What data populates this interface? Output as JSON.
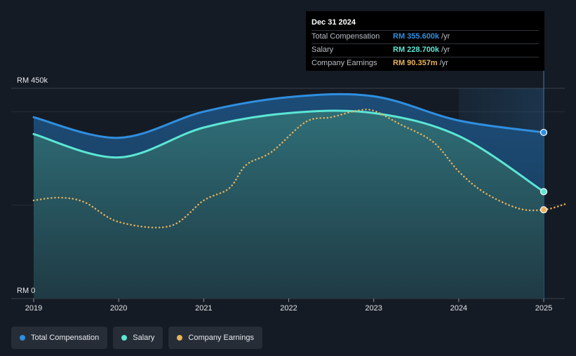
{
  "chart_data": {
    "type": "area",
    "y_axis": {
      "top_label": "RM 450k",
      "bottom_label": "RM 0",
      "ylim": [
        0,
        450000
      ]
    },
    "x_ticks": [
      "2019",
      "2020",
      "2021",
      "2022",
      "2023",
      "2024",
      "2025"
    ],
    "xlim": [
      2019,
      2025.25
    ],
    "forecast_start": 2024,
    "series": [
      {
        "name": "Total Compensation",
        "color": "#2f8fe0",
        "style": "area",
        "points": [
          [
            2019.0,
            388000
          ],
          [
            2020.0,
            344000
          ],
          [
            2021.0,
            400000
          ],
          [
            2022.0,
            431000
          ],
          [
            2023.0,
            433000
          ],
          [
            2024.0,
            381000
          ],
          [
            2025.0,
            355600
          ]
        ]
      },
      {
        "name": "Salary",
        "color": "#5ce6d4",
        "style": "area",
        "points": [
          [
            2019.0,
            352000
          ],
          [
            2020.0,
            302000
          ],
          [
            2021.0,
            366000
          ],
          [
            2022.0,
            397000
          ],
          [
            2023.0,
            397000
          ],
          [
            2024.0,
            348000
          ],
          [
            2025.0,
            228700
          ]
        ]
      },
      {
        "name": "Company Earnings",
        "color": "#e8b25c",
        "style": "dotted-line",
        "points": [
          [
            2019.0,
            210000
          ],
          [
            2019.3,
            216000
          ],
          [
            2019.6,
            206000
          ],
          [
            2020.0,
            164000
          ],
          [
            2020.6,
            155000
          ],
          [
            2021.0,
            210000
          ],
          [
            2021.3,
            236000
          ],
          [
            2021.5,
            286000
          ],
          [
            2021.8,
            314000
          ],
          [
            2022.2,
            378000
          ],
          [
            2022.5,
            388000
          ],
          [
            2022.8,
            402000
          ],
          [
            2023.0,
            402000
          ],
          [
            2023.3,
            374000
          ],
          [
            2023.7,
            335000
          ],
          [
            2024.0,
            272000
          ],
          [
            2024.3,
            227000
          ],
          [
            2024.7,
            193000
          ],
          [
            2025.0,
            190000
          ],
          [
            2025.25,
            202000
          ]
        ]
      }
    ],
    "legend_position": "bottom-left"
  },
  "tooltip": {
    "date": "Dec 31 2024",
    "rows": [
      {
        "name": "Total Compensation",
        "value": "RM 355.600k",
        "unit": "/yr",
        "color": "#2f8fe0"
      },
      {
        "name": "Salary",
        "value": "RM 228.700k",
        "unit": "/yr",
        "color": "#5ce6d4"
      },
      {
        "name": "Company Earnings",
        "value": "RM 90.357m",
        "unit": "/yr",
        "color": "#e8b25c"
      }
    ]
  },
  "legend": [
    {
      "label": "Total Compensation",
      "color": "#2f8fe0"
    },
    {
      "label": "Salary",
      "color": "#5ce6d4"
    },
    {
      "label": "Company Earnings",
      "color": "#e8b25c"
    }
  ]
}
